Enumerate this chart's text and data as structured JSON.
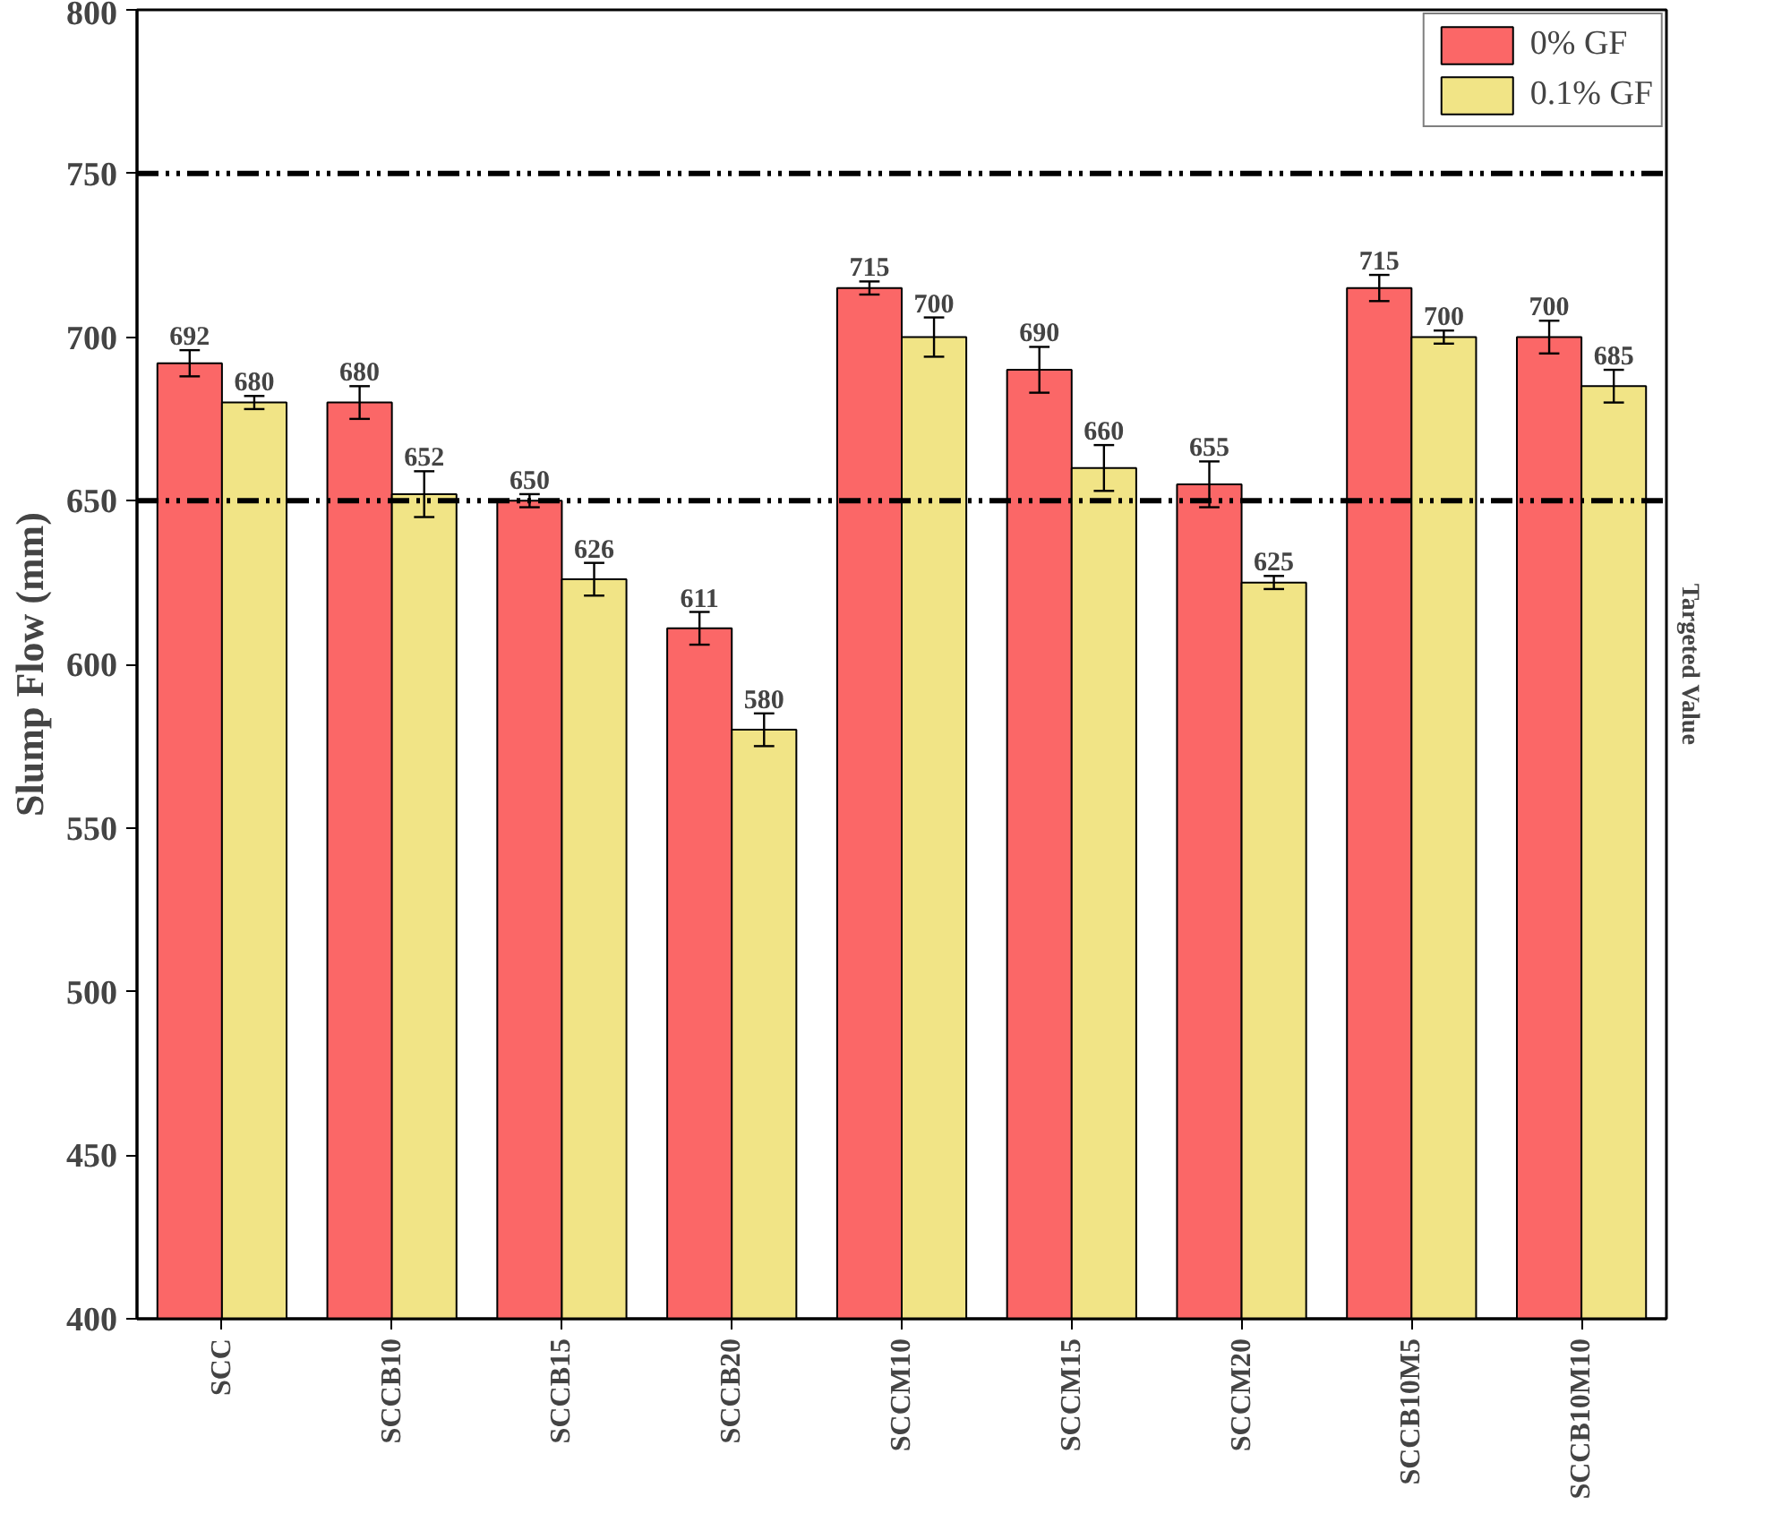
{
  "chart_data": {
    "type": "bar",
    "ylabel": "Slump Flow (mm)",
    "categories": [
      "SCC",
      "SCCB10",
      "SCCB15",
      "SCCB20",
      "SCCM10",
      "SCCM15",
      "SCCM20",
      "SCCB10M5",
      "SCCB10M10"
    ],
    "series": [
      {
        "name": "0% GF",
        "color": "#fb6767",
        "values": [
          692,
          680,
          650,
          611,
          715,
          690,
          655,
          715,
          700
        ],
        "errors": [
          4,
          5,
          2,
          5,
          2,
          7,
          7,
          4,
          5
        ]
      },
      {
        "name": "0.1% GF",
        "color": "#f1e486",
        "values": [
          680,
          652,
          626,
          580,
          700,
          660,
          625,
          700,
          685
        ],
        "errors": [
          2,
          7,
          5,
          5,
          6,
          7,
          2,
          2,
          5
        ]
      }
    ],
    "ylim": [
      400,
      800
    ],
    "yticks": [
      400,
      450,
      500,
      550,
      600,
      650,
      700,
      750,
      800
    ],
    "ref_lines": [
      {
        "axis": "y",
        "value": 650,
        "color": "#000000",
        "line_style": "dashdot"
      },
      {
        "axis": "y",
        "value": 750,
        "color": "#000000",
        "line_style": "dashdot"
      }
    ],
    "annotations": [
      "Targeted Value"
    ],
    "data_labels": true,
    "grid": false,
    "legend": "top right"
  }
}
